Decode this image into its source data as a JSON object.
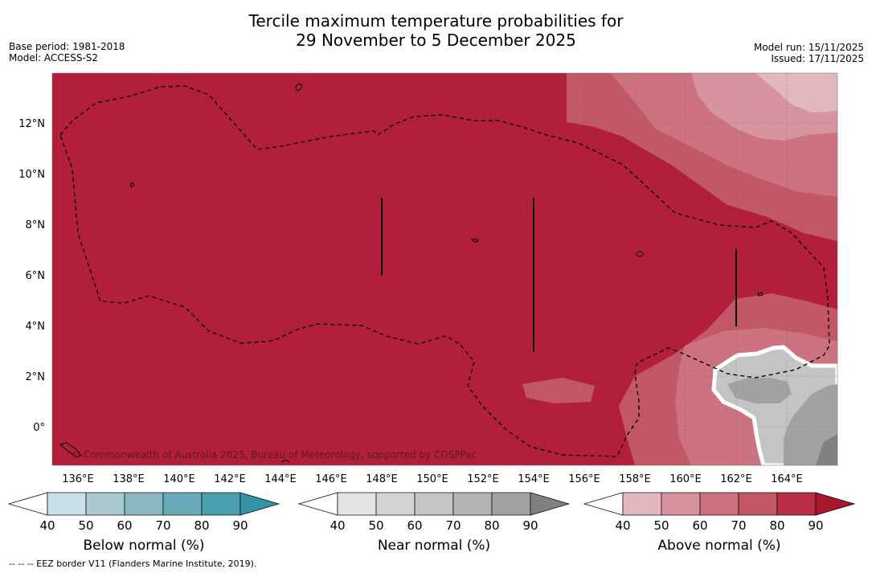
{
  "title": {
    "line1": "Tercile maximum temperature probabilities for",
    "line2": "29 November to 5 December 2025"
  },
  "info_left": {
    "base_period": "Base period: 1981-2018",
    "model": "Model: ACCESS-S2"
  },
  "info_right": {
    "model_run": "Model run: 15/11/2025",
    "issued": "Issued: 17/11/2025"
  },
  "map": {
    "lon_range": [
      135,
      166
    ],
    "lat_range": [
      -1.5,
      13.9
    ],
    "lon_ticks": [
      "136°E",
      "138°E",
      "140°E",
      "142°E",
      "144°E",
      "146°E",
      "148°E",
      "150°E",
      "152°E",
      "154°E",
      "156°E",
      "158°E",
      "160°E",
      "162°E",
      "164°E"
    ],
    "lat_ticks": [
      "12°N",
      "10°N",
      "8°N",
      "6°N",
      "4°N",
      "2°N",
      "0°"
    ],
    "background_color": "#b31e3a",
    "copyright": "© Commonwealth of Australia 2025, Bureau of Meteorology, supported by COSPPac"
  },
  "colorbars": [
    {
      "name": "below-normal",
      "title": "Below normal (%)",
      "labels": [
        "40",
        "50",
        "60",
        "70",
        "80",
        "90"
      ],
      "colors": [
        "#ffffff",
        "#c9e0e6",
        "#a8cad0",
        "#8ab8c2",
        "#6aaab8",
        "#4aa0b0",
        "#3393a4"
      ]
    },
    {
      "name": "near-normal",
      "title": "Near normal (%)",
      "labels": [
        "40",
        "50",
        "60",
        "70",
        "80",
        "90"
      ],
      "colors": [
        "#ffffff",
        "#e3e3e3",
        "#d4d4d4",
        "#c4c4c4",
        "#b4b4b4",
        "#a2a2a2",
        "#808080"
      ]
    },
    {
      "name": "above-normal",
      "title": "Above normal (%)",
      "labels": [
        "40",
        "50",
        "60",
        "70",
        "80",
        "90"
      ],
      "colors": [
        "#ffffff",
        "#e2b8bf",
        "#d8949e",
        "#cc737f",
        "#c25866",
        "#b82e46",
        "#a8152d"
      ]
    }
  ],
  "footnote": "--  --  -- EEZ border V11 (Flanders Marine Institute, 2019)."
}
